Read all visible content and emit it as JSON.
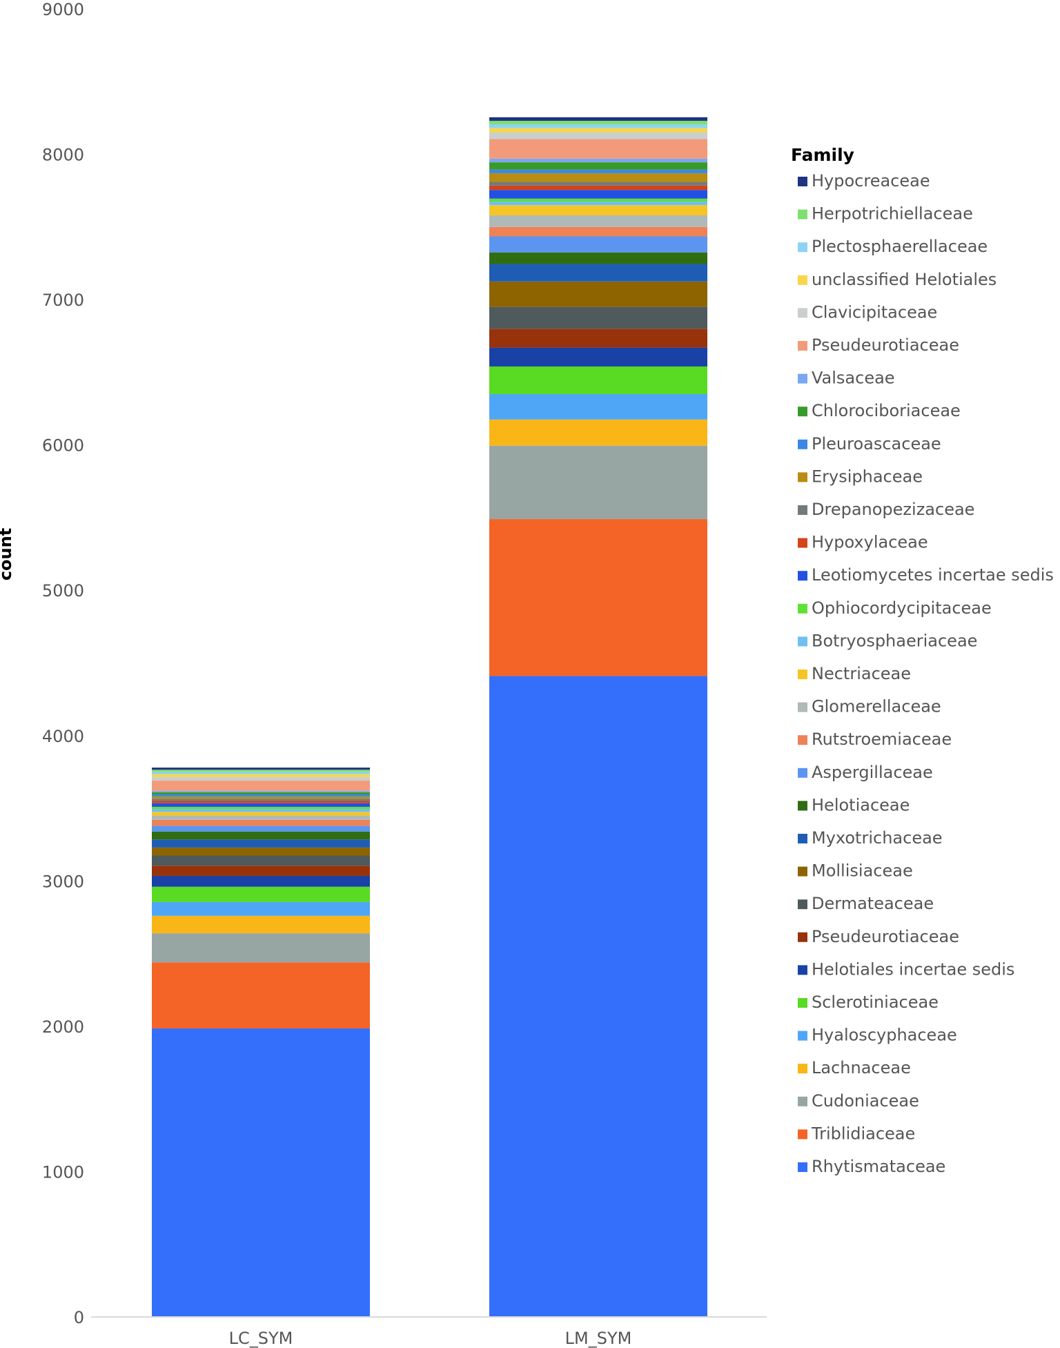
{
  "chart_data": {
    "type": "bar",
    "stacked": true,
    "title": "",
    "xlabel": "",
    "ylabel": "count",
    "ylim": [
      0,
      9000
    ],
    "yticks": [
      0,
      1000,
      2000,
      3000,
      4000,
      5000,
      6000,
      7000,
      8000,
      9000
    ],
    "categories": [
      "LC_SYM",
      "LM_SYM"
    ],
    "legend_title": "Family",
    "legend_position": "right",
    "series": [
      {
        "name": "Rhytismataceae",
        "color": "#336ffa",
        "values": [
          1985,
          4410
        ]
      },
      {
        "name": "Triblidiaceae",
        "color": "#f46427",
        "values": [
          455,
          1080
        ]
      },
      {
        "name": "Cudoniaceae",
        "color": "#98a6a3",
        "values": [
          200,
          505
        ]
      },
      {
        "name": "Lachnaceae",
        "color": "#fab617",
        "values": [
          120,
          180
        ]
      },
      {
        "name": "Hyaloscyphaceae",
        "color": "#4fa6f6",
        "values": [
          95,
          175
        ]
      },
      {
        "name": "Sclerotiniaceae",
        "color": "#58db22",
        "values": [
          105,
          190
        ]
      },
      {
        "name": "Helotiales incertae sedis",
        "color": "#1a42a6",
        "values": [
          75,
          130
        ]
      },
      {
        "name": "Pseudeurotiaceae",
        "color": "#98320b",
        "values": [
          70,
          130
        ]
      },
      {
        "name": "Dermateaceae",
        "color": "#4f5a5c",
        "values": [
          70,
          150
        ]
      },
      {
        "name": "Mollisiaceae",
        "color": "#8d6400",
        "values": [
          55,
          175
        ]
      },
      {
        "name": "Myxotrichaceae",
        "color": "#1f5db5",
        "values": [
          55,
          120
        ]
      },
      {
        "name": "Helotiaceae",
        "color": "#2f6d12",
        "values": [
          55,
          80
        ]
      },
      {
        "name": "Aspergillaceae",
        "color": "#5c95ef",
        "values": [
          40,
          110
        ]
      },
      {
        "name": "Rutstroemiaceae",
        "color": "#ef8156",
        "values": [
          40,
          65
        ]
      },
      {
        "name": "Glomerellaceae",
        "color": "#afb9b7",
        "values": [
          30,
          80
        ]
      },
      {
        "name": "Nectriaceae",
        "color": "#f7c425",
        "values": [
          25,
          70
        ]
      },
      {
        "name": "Botryosphaeriaceae",
        "color": "#6fbff0",
        "values": [
          20,
          25
        ]
      },
      {
        "name": "Ophiocordycipitaceae",
        "color": "#5fe135",
        "values": [
          15,
          20
        ]
      },
      {
        "name": "Leotiomycetes incertae sedis",
        "color": "#2450e2",
        "values": [
          25,
          60
        ]
      },
      {
        "name": "Hypoxylaceae",
        "color": "#d4431a",
        "values": [
          15,
          30
        ]
      },
      {
        "name": "Drepanopezizaceae",
        "color": "#727b7b",
        "values": [
          15,
          25
        ]
      },
      {
        "name": "Erysiphaceae",
        "color": "#b98c12",
        "values": [
          15,
          60
        ]
      },
      {
        "name": "Pleuroascaceae",
        "color": "#3c87e6",
        "values": [
          15,
          25
        ]
      },
      {
        "name": "Chlorociboriaceae",
        "color": "#389a2a",
        "values": [
          15,
          50
        ]
      },
      {
        "name": "Valsaceae",
        "color": "#79a8f0",
        "values": [
          10,
          25
        ]
      },
      {
        "name": "Pseudeurotiaceae",
        "color": "#f39a7b",
        "values": [
          70,
          135
        ]
      },
      {
        "name": "Clavicipitaceae",
        "color": "#c9cfcf",
        "values": [
          25,
          45
        ]
      },
      {
        "name": "unclassified Helotiales",
        "color": "#f7d64d",
        "values": [
          20,
          30
        ]
      },
      {
        "name": "Plectosphaerellaceae",
        "color": "#8dd3f5",
        "values": [
          15,
          25
        ]
      },
      {
        "name": "Herpotrichiellaceae",
        "color": "#7ee070",
        "values": [
          15,
          25
        ]
      },
      {
        "name": "Hypocreaceae",
        "color": "#1f3480",
        "values": [
          15,
          25
        ]
      }
    ]
  }
}
